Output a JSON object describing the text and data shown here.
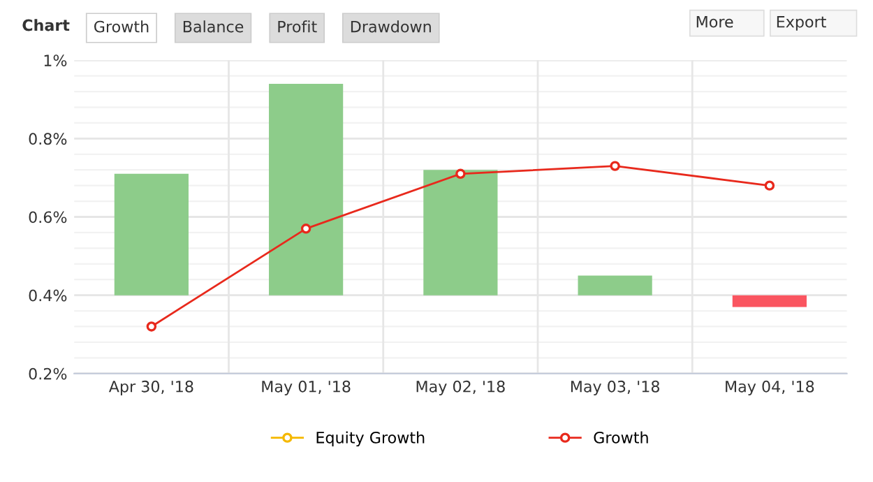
{
  "chart_data": {
    "type": "bar",
    "title": "Chart",
    "annotations": [
      "Growth",
      "Balance",
      "Profit",
      "Drawdown",
      "More",
      "Export"
    ],
    "categories": [
      "Apr 30, '18",
      "May 01, '18",
      "May 02, '18",
      "May 03, '18",
      "May 04, '18"
    ],
    "series": [
      {
        "name": "Equity Growth",
        "type": "line",
        "color": "#f5b800",
        "values": [
          null,
          null,
          null,
          null,
          null
        ]
      },
      {
        "name": "Growth",
        "type": "line",
        "color": "#e8291c",
        "values": [
          0.32,
          0.57,
          0.71,
          0.73,
          0.68
        ]
      },
      {
        "colors": [
          "#8dcc8a",
          "#8dcc8a",
          "#8dcc8a",
          "#8dcc8a",
          "#fa5560"
        ],
        "base": [
          0.4,
          0.4,
          0.4,
          0.4,
          0.4
        ],
        "values": [
          0.31,
          0.54,
          0.32,
          0.05,
          -0.03
        ]
      }
    ],
    "ylim": [
      0.2,
      1
    ],
    "yticks": [
      {
        "value": 0.2,
        "label": "0.2%"
      },
      {
        "value": 0.4,
        "label": "0.4%"
      },
      {
        "value": 0.6,
        "label": "0.6%"
      },
      {
        "value": 0.8,
        "label": "0.8%"
      },
      {
        "value": 1,
        "label": "1%"
      }
    ],
    "grid": true,
    "legend": "bottom",
    "marker": "circle"
  }
}
